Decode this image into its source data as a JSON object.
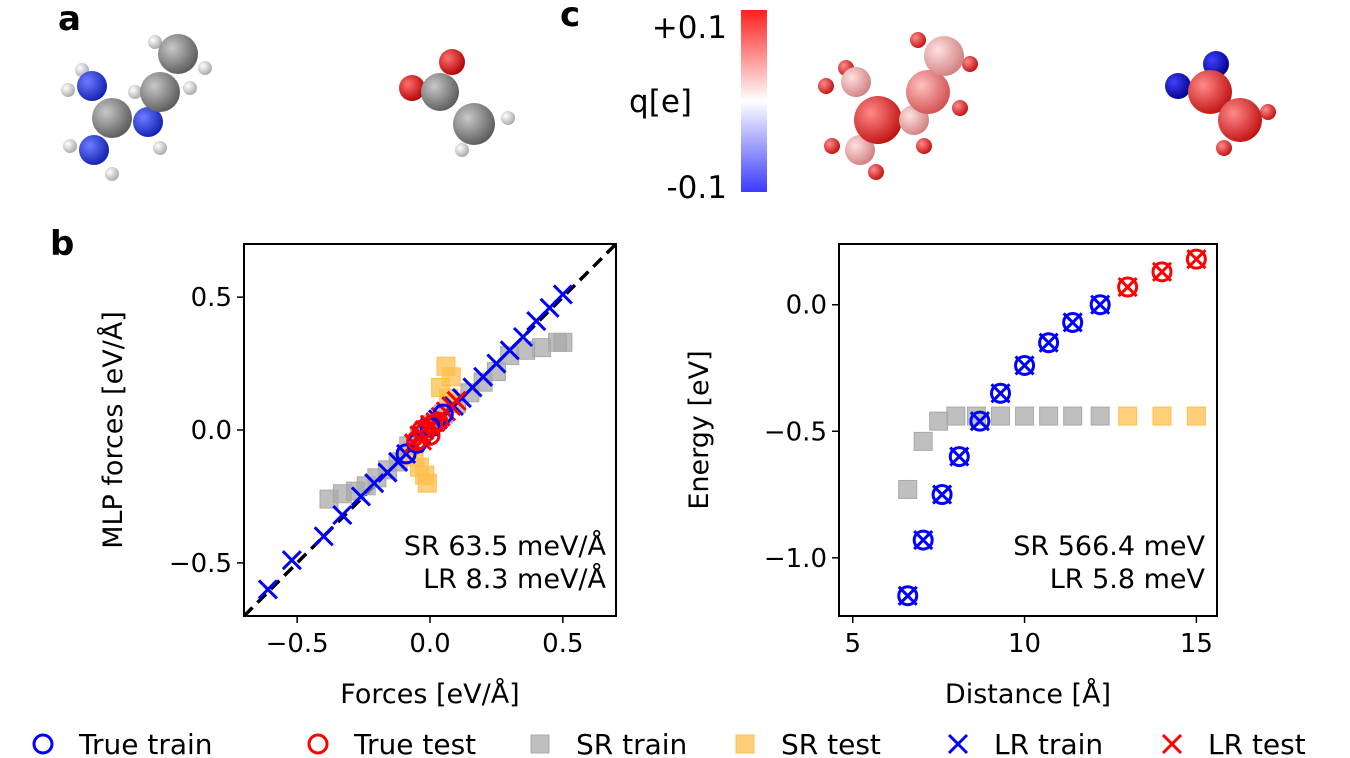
{
  "panel_labels": {
    "a": "a",
    "b": "b",
    "c": "c"
  },
  "colorbar": {
    "label": "q[e]",
    "max_label": "+0.1",
    "min_label": "-0.1",
    "range": [
      -0.1,
      0.1
    ],
    "colormap": "bwr"
  },
  "molecules": {
    "left_image": "neutral dimer (atoms colored by element)",
    "right_image": "dimer atoms colored by partial charge"
  },
  "colors": {
    "true_train": "#0000ff",
    "true_test": "#ff0000",
    "sr_train": "#a9a9a9",
    "sr_test": "#ffbf4d",
    "lr_train": "#0000ff",
    "lr_test": "#ff0000",
    "carbon": "#808080",
    "nitrogen": "#2a3ee0",
    "oxygen": "#e00000",
    "hydrogen": "#e0e0e0"
  },
  "legend": [
    {
      "key": "true_train",
      "label": "True train",
      "marker": "circle"
    },
    {
      "key": "true_test",
      "label": "True test",
      "marker": "circle"
    },
    {
      "key": "sr_train",
      "label": "SR train",
      "marker": "square"
    },
    {
      "key": "sr_test",
      "label": "SR test",
      "marker": "square"
    },
    {
      "key": "lr_train",
      "label": "LR train",
      "marker": "x"
    },
    {
      "key": "lr_test",
      "label": "LR test",
      "marker": "x"
    }
  ],
  "chart_data": [
    {
      "id": "forces",
      "type": "scatter",
      "xlabel": "Forces [eV/Å]",
      "ylabel": "MLP forces [eV/Å]",
      "xlim": [
        -0.7,
        0.7
      ],
      "ylim": [
        -0.7,
        0.7
      ],
      "xticks": [
        -0.5,
        0.0,
        0.5
      ],
      "yticks": [
        -0.5,
        0.0,
        0.5
      ],
      "xtick_labels": [
        "−0.5",
        "0.0",
        "0.5"
      ],
      "ytick_labels": [
        "−0.5",
        "0.0",
        "0.5"
      ],
      "grid": false,
      "parity_line": true,
      "annotations": [
        "SR 63.5 meV/Å",
        "LR 8.3 meV/Å"
      ],
      "series": [
        {
          "name": "SR train",
          "key": "sr_train",
          "marker": "square",
          "points": [
            [
              -0.38,
              -0.26
            ],
            [
              -0.33,
              -0.24
            ],
            [
              -0.28,
              -0.23
            ],
            [
              -0.24,
              -0.21
            ],
            [
              -0.2,
              -0.18
            ],
            [
              -0.16,
              -0.15
            ],
            [
              -0.12,
              -0.12
            ],
            [
              -0.08,
              -0.06
            ],
            [
              -0.04,
              -0.02
            ],
            [
              0.0,
              0.02
            ],
            [
              0.05,
              0.06
            ],
            [
              0.1,
              0.1
            ],
            [
              0.15,
              0.14
            ],
            [
              0.2,
              0.18
            ],
            [
              0.25,
              0.22
            ],
            [
              0.3,
              0.28
            ],
            [
              0.36,
              0.3
            ],
            [
              0.42,
              0.31
            ],
            [
              0.48,
              0.33
            ],
            [
              0.5,
              0.33
            ]
          ]
        },
        {
          "name": "SR test",
          "key": "sr_test",
          "marker": "square",
          "points": [
            [
              0.06,
              0.24
            ],
            [
              0.08,
              0.2
            ],
            [
              0.04,
              0.16
            ],
            [
              0.07,
              0.12
            ],
            [
              -0.04,
              -0.14
            ],
            [
              -0.02,
              -0.17
            ],
            [
              -0.06,
              -0.1
            ],
            [
              -0.01,
              -0.2
            ]
          ]
        },
        {
          "name": "LR train",
          "key": "lr_train",
          "marker": "x",
          "points": [
            [
              -0.61,
              -0.6
            ],
            [
              -0.52,
              -0.49
            ],
            [
              -0.4,
              -0.4
            ],
            [
              -0.33,
              -0.32
            ],
            [
              -0.26,
              -0.25
            ],
            [
              -0.21,
              -0.2
            ],
            [
              -0.16,
              -0.16
            ],
            [
              -0.12,
              -0.12
            ],
            [
              -0.09,
              -0.09
            ],
            [
              -0.06,
              -0.05
            ],
            [
              -0.03,
              -0.02
            ],
            [
              0.0,
              0.01
            ],
            [
              0.03,
              0.04
            ],
            [
              0.06,
              0.07
            ],
            [
              0.09,
              0.09
            ],
            [
              0.12,
              0.12
            ],
            [
              0.16,
              0.16
            ],
            [
              0.2,
              0.2
            ],
            [
              0.25,
              0.25
            ],
            [
              0.3,
              0.3
            ],
            [
              0.35,
              0.35
            ],
            [
              0.4,
              0.41
            ],
            [
              0.45,
              0.46
            ],
            [
              0.5,
              0.51
            ]
          ]
        },
        {
          "name": "LR test",
          "key": "lr_test",
          "marker": "x",
          "points": [
            [
              -0.06,
              -0.05
            ],
            [
              -0.04,
              -0.02
            ],
            [
              -0.02,
              0.0
            ],
            [
              0.0,
              0.02
            ],
            [
              0.02,
              0.03
            ],
            [
              0.04,
              0.05
            ],
            [
              0.06,
              0.07
            ],
            [
              0.08,
              0.09
            ],
            [
              0.1,
              0.11
            ],
            [
              -0.03,
              -0.04
            ]
          ]
        },
        {
          "name": "True train",
          "key": "true_train",
          "marker": "circle",
          "points": [
            [
              -0.09,
              -0.09
            ],
            [
              -0.05,
              -0.05
            ],
            [
              0.0,
              0.01
            ],
            [
              0.05,
              0.06
            ]
          ]
        },
        {
          "name": "True test",
          "key": "true_test",
          "marker": "circle",
          "points": [
            [
              -0.05,
              -0.04
            ],
            [
              -0.02,
              -0.01
            ],
            [
              0.01,
              0.02
            ],
            [
              0.03,
              0.03
            ],
            [
              -0.03,
              0.0
            ],
            [
              0.0,
              -0.02
            ]
          ]
        }
      ]
    },
    {
      "id": "binding",
      "type": "scatter",
      "xlabel": "Distance [Å]",
      "ylabel": "Energy [eV]",
      "xlim": [
        4.6,
        15.6
      ],
      "ylim": [
        -1.23,
        0.24
      ],
      "xticks": [
        5,
        10,
        15
      ],
      "yticks": [
        0.0,
        -0.5,
        -1.0
      ],
      "xtick_labels": [
        "5",
        "10",
        "15"
      ],
      "ytick_labels": [
        "0.0",
        "−0.5",
        "−1.0"
      ],
      "grid": false,
      "annotations": [
        "SR 566.4 meV",
        "LR 5.8 meV"
      ],
      "series": [
        {
          "name": "SR train",
          "key": "sr_train",
          "marker": "square",
          "points": [
            [
              6.6,
              -0.73
            ],
            [
              7.05,
              -0.54
            ],
            [
              7.5,
              -0.46
            ],
            [
              8.0,
              -0.44
            ],
            [
              8.6,
              -0.44
            ],
            [
              9.3,
              -0.44
            ],
            [
              10.0,
              -0.44
            ],
            [
              10.7,
              -0.44
            ],
            [
              11.4,
              -0.44
            ],
            [
              12.2,
              -0.44
            ]
          ]
        },
        {
          "name": "SR test",
          "key": "sr_test",
          "marker": "square",
          "points": [
            [
              13.0,
              -0.44
            ],
            [
              14.0,
              -0.44
            ],
            [
              15.0,
              -0.44
            ]
          ]
        },
        {
          "name": "True train",
          "key": "true_train",
          "marker": "circle",
          "points": [
            [
              6.6,
              -1.15
            ],
            [
              7.05,
              -0.93
            ],
            [
              7.6,
              -0.75
            ],
            [
              8.1,
              -0.6
            ],
            [
              8.7,
              -0.46
            ],
            [
              9.3,
              -0.35
            ],
            [
              10.0,
              -0.24
            ],
            [
              10.7,
              -0.15
            ],
            [
              11.4,
              -0.07
            ],
            [
              12.2,
              0.0
            ]
          ]
        },
        {
          "name": "LR train",
          "key": "lr_train",
          "marker": "x",
          "points": [
            [
              6.6,
              -1.15
            ],
            [
              7.05,
              -0.93
            ],
            [
              7.6,
              -0.75
            ],
            [
              8.1,
              -0.6
            ],
            [
              8.7,
              -0.46
            ],
            [
              9.3,
              -0.35
            ],
            [
              10.0,
              -0.24
            ],
            [
              10.7,
              -0.15
            ],
            [
              11.4,
              -0.07
            ],
            [
              12.2,
              0.0
            ]
          ]
        },
        {
          "name": "True test",
          "key": "true_test",
          "marker": "circle",
          "points": [
            [
              13.0,
              0.07
            ],
            [
              14.0,
              0.13
            ],
            [
              15.0,
              0.18
            ]
          ]
        },
        {
          "name": "LR test",
          "key": "lr_test",
          "marker": "x",
          "points": [
            [
              13.0,
              0.07
            ],
            [
              14.0,
              0.13
            ],
            [
              15.0,
              0.18
            ]
          ]
        }
      ]
    }
  ]
}
